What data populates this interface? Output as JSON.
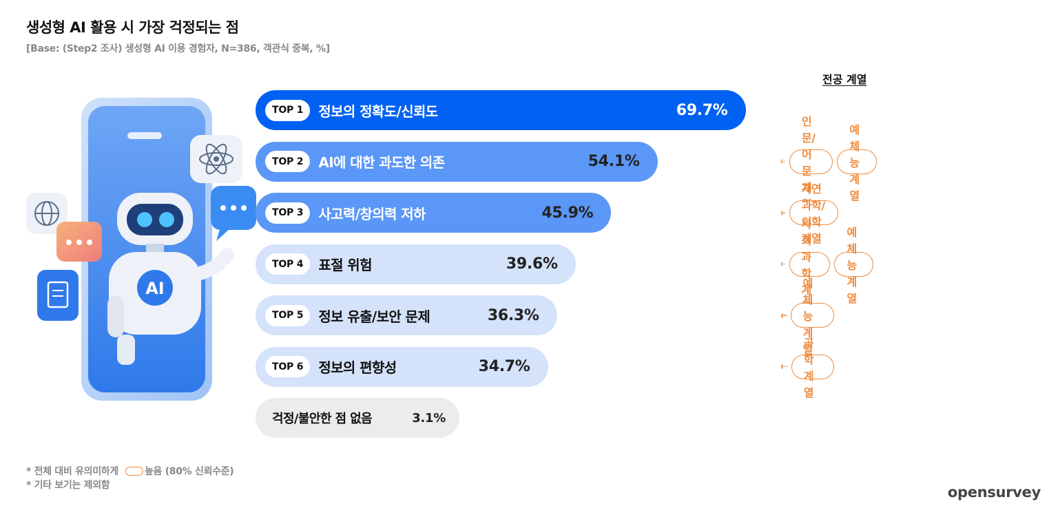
{
  "title": "생성형 AI 활용 시 가장 걱정되는 점",
  "subtitle": "[Base: (Step2 조사) 생성형 AI 이용 경험자, N=386, 객관식 중복, %]",
  "major_header": "전공 계열",
  "illustration": {
    "badge": "AI",
    "icons": [
      "globe-icon",
      "chat-icon",
      "document-icon",
      "atom-icon",
      "robot-icon",
      "smartphone-icon"
    ]
  },
  "colors": {
    "top1": "#0061f2",
    "top2_3": "#5b97f6",
    "top4_6": "#d4e2fa",
    "none": "#ececec",
    "tag": "#ef8a3c",
    "dot": "#f4a15d"
  },
  "chart_data": {
    "type": "bar",
    "orientation": "horizontal",
    "value_unit": "%",
    "categories": [
      "정보의 정확도/신뢰도",
      "AI에 대한 과도한 의존",
      "사고력/창의력 저하",
      "표절 위험",
      "정보 유출/보안 문제",
      "정보의 편향성",
      "걱정/불안한 점 없음"
    ],
    "ranks": [
      "TOP 1",
      "TOP 2",
      "TOP 3",
      "TOP 4",
      "TOP 5",
      "TOP 6",
      ""
    ],
    "values": [
      69.7,
      54.1,
      45.9,
      39.6,
      36.3,
      34.7,
      3.1
    ],
    "value_labels": [
      "69.7%",
      "54.1%",
      "45.9%",
      "39.6%",
      "36.3%",
      "34.7%",
      "3.1%"
    ],
    "significant_majors": [
      [],
      [
        "인문/어문 계열",
        "예체능 계열"
      ],
      [
        "자연과학/이학 계열"
      ],
      [
        "사회과학 계열",
        "예체능 계열"
      ],
      [
        "예체능 계열"
      ],
      [
        "공학 계열"
      ],
      []
    ]
  },
  "notes": {
    "note1_prefix": "* 전체 대비 유의미하게",
    "note1_suffix": "높음 (80% 신뢰수준)",
    "note2": "* 기타 보기는 제외함"
  },
  "brand": "opensurvey"
}
